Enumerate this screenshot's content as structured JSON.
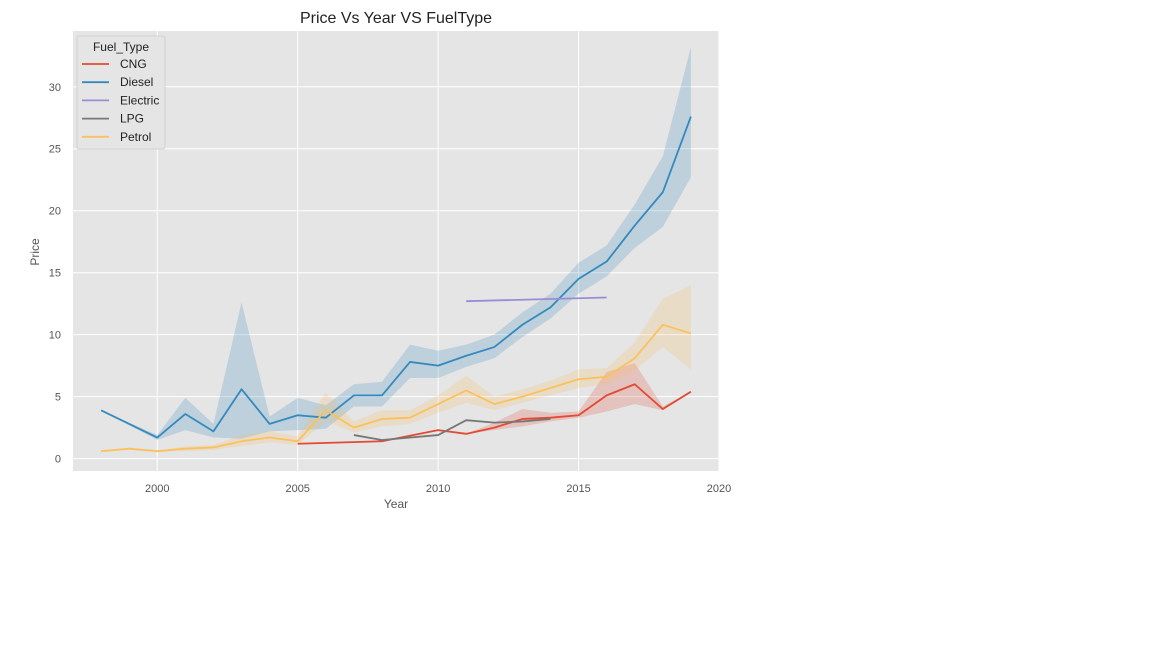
{
  "chart_data": {
    "type": "line",
    "title": "Price Vs Year VS FuelType",
    "xlabel": "Year",
    "ylabel": "Price",
    "xlim": [
      1997,
      2020
    ],
    "ylim": [
      -1,
      34.5
    ],
    "xticks": [
      2000,
      2005,
      2010,
      2015,
      2020
    ],
    "yticks": [
      0,
      5,
      10,
      15,
      20,
      25,
      30
    ],
    "grid": true,
    "legend": {
      "title": "Fuel_Type",
      "placement": "top-left"
    },
    "series": [
      {
        "name": "CNG",
        "color": "#e24a33",
        "x": [
          2005,
          2008,
          2010,
          2011,
          2012,
          2013,
          2014,
          2015,
          2016,
          2017,
          2018,
          2019
        ],
        "y": [
          1.2,
          1.4,
          2.3,
          2.0,
          2.5,
          3.2,
          3.3,
          3.5,
          5.1,
          6.0,
          4.0,
          5.4
        ],
        "lower": [
          1.2,
          1.4,
          2.3,
          2.0,
          2.3,
          2.6,
          3.0,
          3.3,
          3.8,
          4.4,
          3.9,
          5.4
        ],
        "upper": [
          1.2,
          1.4,
          2.3,
          2.0,
          2.9,
          4.0,
          3.7,
          3.8,
          7.0,
          7.7,
          4.2,
          5.4
        ]
      },
      {
        "name": "Diesel",
        "color": "#348abd",
        "x": [
          1998,
          2000,
          2001,
          2002,
          2003,
          2004,
          2005,
          2006,
          2007,
          2008,
          2009,
          2010,
          2011,
          2012,
          2013,
          2014,
          2015,
          2016,
          2017,
          2018,
          2019
        ],
        "y": [
          3.9,
          1.7,
          3.6,
          2.2,
          5.6,
          2.8,
          3.5,
          3.3,
          5.1,
          5.1,
          7.8,
          7.5,
          8.3,
          9.0,
          10.8,
          12.2,
          14.5,
          15.9,
          18.8,
          21.5,
          27.6
        ],
        "lower": [
          3.9,
          1.5,
          2.3,
          1.7,
          1.6,
          2.2,
          2.3,
          2.4,
          4.2,
          4.2,
          6.5,
          6.5,
          7.4,
          8.1,
          9.8,
          11.3,
          13.3,
          14.7,
          17.0,
          18.7,
          22.7
        ],
        "upper": [
          3.9,
          1.9,
          4.9,
          2.8,
          12.6,
          3.4,
          4.9,
          4.3,
          6.0,
          6.2,
          9.2,
          8.7,
          9.2,
          10.0,
          11.8,
          13.3,
          15.8,
          17.2,
          20.5,
          24.4,
          33.2
        ]
      },
      {
        "name": "Electric",
        "color": "#988ed5",
        "x": [
          2011,
          2016
        ],
        "y": [
          12.7,
          13.0
        ],
        "lower": [
          12.7,
          13.0
        ],
        "upper": [
          12.7,
          13.0
        ]
      },
      {
        "name": "LPG",
        "color": "#777777",
        "x": [
          2007,
          2008,
          2010,
          2011,
          2012,
          2013,
          2014
        ],
        "y": [
          1.9,
          1.5,
          1.9,
          3.1,
          2.9,
          3.0,
          3.2
        ],
        "lower": [
          1.9,
          1.5,
          1.9,
          3.1,
          2.9,
          3.0,
          3.2
        ],
        "upper": [
          1.9,
          1.5,
          1.9,
          3.1,
          2.9,
          3.0,
          3.2
        ]
      },
      {
        "name": "Petrol",
        "color": "#fbc15e",
        "x": [
          1998,
          1999,
          2000,
          2001,
          2002,
          2003,
          2004,
          2005,
          2006,
          2007,
          2008,
          2009,
          2010,
          2011,
          2012,
          2013,
          2014,
          2015,
          2016,
          2017,
          2018,
          2019
        ],
        "y": [
          0.6,
          0.8,
          0.6,
          0.8,
          0.9,
          1.4,
          1.7,
          1.4,
          3.9,
          2.5,
          3.2,
          3.3,
          4.4,
          5.5,
          4.4,
          5.0,
          5.7,
          6.4,
          6.6,
          8.1,
          10.8,
          10.1
        ],
        "lower": [
          0.6,
          0.8,
          0.6,
          0.6,
          0.7,
          1.0,
          1.3,
          1.1,
          3.0,
          2.1,
          2.6,
          2.8,
          3.7,
          4.5,
          3.9,
          4.5,
          5.1,
          5.7,
          6.0,
          7.1,
          9.0,
          7.2
        ],
        "upper": [
          0.6,
          0.8,
          0.6,
          1.0,
          1.1,
          1.9,
          2.2,
          1.8,
          5.3,
          3.0,
          3.9,
          3.9,
          5.1,
          6.7,
          5.0,
          5.6,
          6.3,
          7.2,
          7.3,
          9.4,
          12.9,
          14.0
        ]
      }
    ]
  }
}
